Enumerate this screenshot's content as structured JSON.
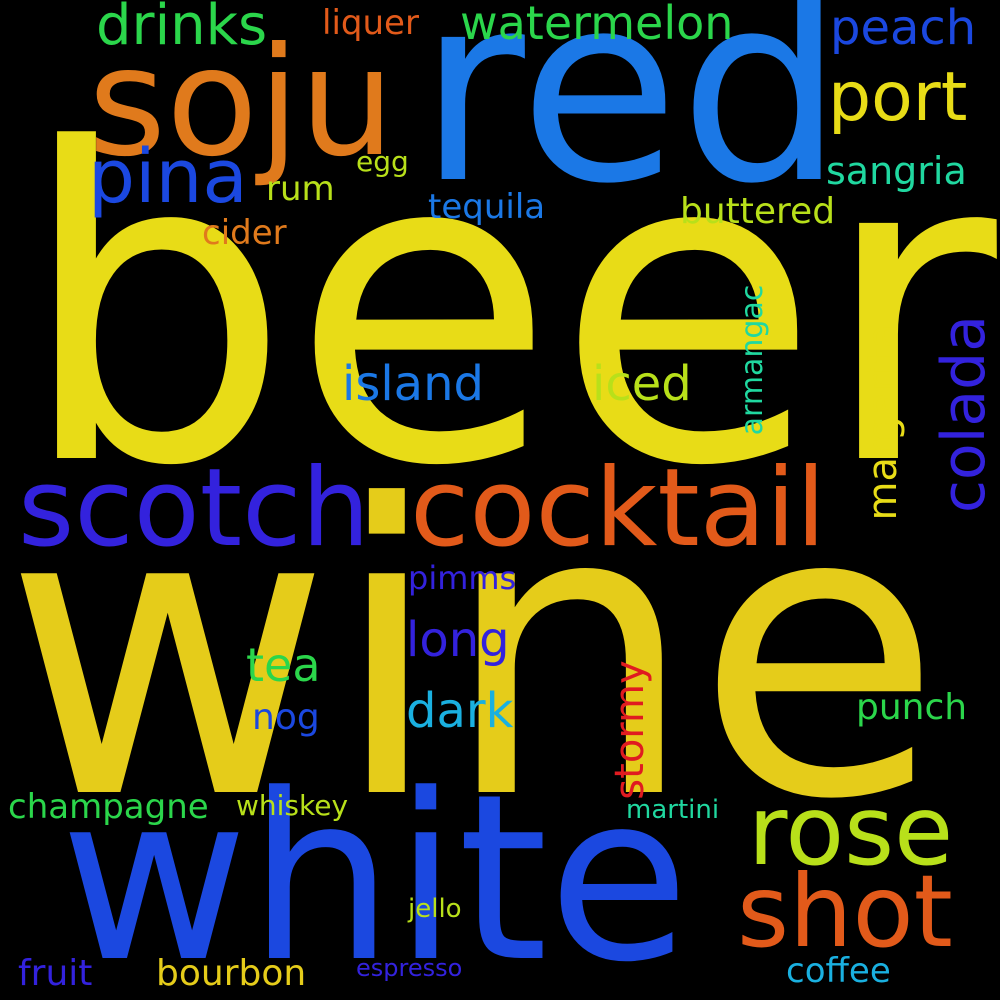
{
  "cloud": {
    "background": "#000000",
    "words": {
      "beer": "beer",
      "wine": "wine",
      "red": "red",
      "white": "white",
      "soju": "soju",
      "cocktail": "cocktail",
      "scotch": "scotch",
      "rose": "rose",
      "shot": "shot",
      "pina": "pina",
      "colada": "colada",
      "port": "port",
      "drinks": "drinks",
      "watermelon": "watermelon",
      "peach": "peach",
      "liquer": "liquer",
      "margarita": "margarita",
      "island": "island",
      "iced": "iced",
      "stormy": "stormy",
      "long": "long",
      "dark": "dark",
      "tea": "tea",
      "sangria": "sangria",
      "buttered": "buttered",
      "tequila": "tequila",
      "rum": "rum",
      "egg": "egg",
      "cider": "cider",
      "armangac": "armangac",
      "pimms": "pimms",
      "nog": "nog",
      "punch": "punch",
      "champagne": "champagne",
      "whiskey": "whiskey",
      "martini": "martini",
      "jello": "jello",
      "fruit": "fruit",
      "bourbon": "bourbon",
      "espresso": "espresso",
      "coffee": "coffee"
    },
    "colors": {
      "yellow": "#e8dc17",
      "gold": "#e5cc1a",
      "blue": "#1b78e6",
      "royal": "#1b48e0",
      "indigo": "#3322dd",
      "orange": "#e07a1c",
      "redorange": "#e25a1a",
      "green": "#2bd64b",
      "lime": "#b8e01a",
      "teal": "#20d8a0",
      "cyan": "#1ab0e0",
      "red": "#e01b20"
    }
  }
}
